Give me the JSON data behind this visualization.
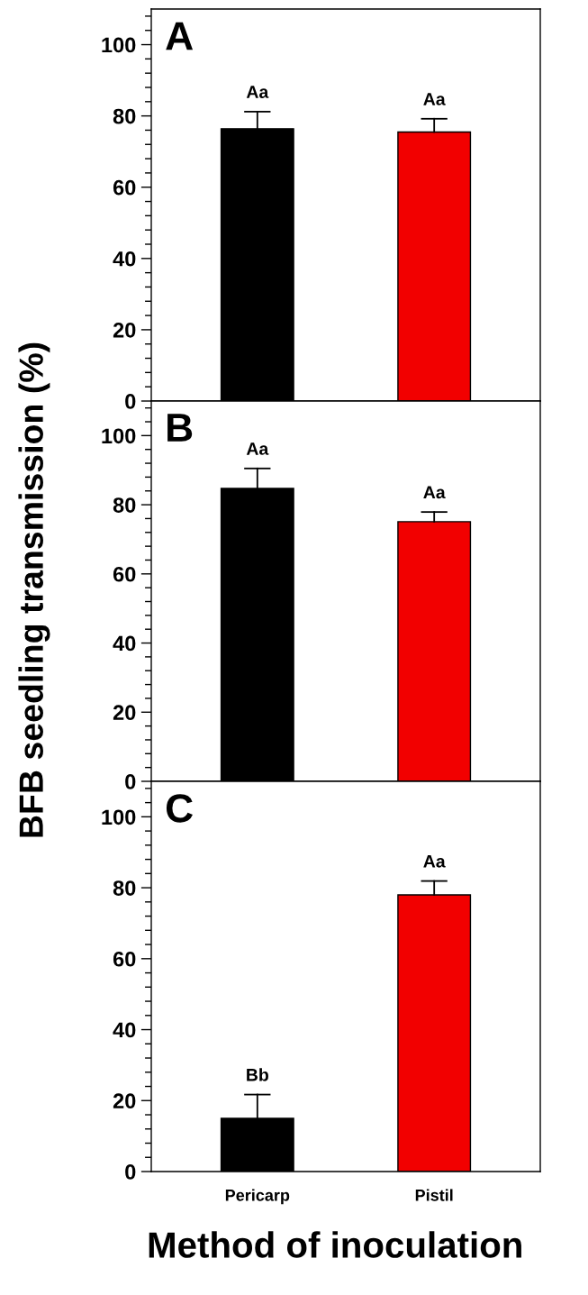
{
  "chart_data": [
    {
      "type": "bar",
      "title": "A",
      "categories": [
        "Pericarp",
        "Pistil"
      ],
      "values": [
        76.4,
        75.5
      ],
      "colors": [
        "#000000",
        "#f20000"
      ],
      "errors": [
        [
          76.4,
          81.2
        ],
        [
          75.5,
          79.2
        ]
      ],
      "ylim": [
        0,
        110
      ],
      "yticks": [
        0,
        {
          "value": 4,
          "label": null
        },
        {
          "value": 8,
          "label": null
        },
        {
          "value": 12,
          "label": null
        },
        {
          "value": 16,
          "label": null
        },
        20,
        {
          "value": 24,
          "label": null
        },
        {
          "value": 28,
          "label": null
        },
        {
          "value": 32,
          "label": null
        },
        {
          "value": 36,
          "label": null
        },
        40,
        {
          "value": 44,
          "label": null
        },
        {
          "value": 48,
          "label": null
        },
        {
          "value": 52,
          "label": null
        },
        {
          "value": 56,
          "label": null
        },
        60,
        {
          "value": 64,
          "label": null
        },
        {
          "value": 68,
          "label": null
        },
        {
          "value": 72,
          "label": null
        },
        {
          "value": 76,
          "label": null
        },
        80,
        {
          "value": 84,
          "label": null
        },
        {
          "value": 88,
          "label": null
        },
        {
          "value": 92,
          "label": null
        },
        {
          "value": 96,
          "label": null
        },
        100,
        {
          "value": 104,
          "label": null
        },
        {
          "value": 108,
          "label": null
        }
      ],
      "annotations": [
        {
          "text": "Aa",
          "x": "Pericarp",
          "y": 81.2
        },
        {
          "text": "Aa",
          "x": "Pistil",
          "y": 79.2
        }
      ],
      "tick_labels": "y",
      "grid": false,
      "legend": false
    },
    {
      "type": "bar",
      "title": "B",
      "ylabel": "BFB seedling transmission (%)",
      "categories": [
        "Pericarp",
        "Pistil"
      ],
      "values": [
        84.7,
        75.1
      ],
      "colors": [
        "#000000",
        "#f20000"
      ],
      "errors": [
        [
          84.7,
          90.5
        ],
        [
          75.1,
          77.9
        ]
      ],
      "ylim": [
        0,
        110
      ],
      "yticks": [
        0,
        {
          "value": 4,
          "label": null
        },
        {
          "value": 8,
          "label": null
        },
        {
          "value": 12,
          "label": null
        },
        {
          "value": 16,
          "label": null
        },
        20,
        {
          "value": 24,
          "label": null
        },
        {
          "value": 28,
          "label": null
        },
        {
          "value": 32,
          "label": null
        },
        {
          "value": 36,
          "label": null
        },
        40,
        {
          "value": 44,
          "label": null
        },
        {
          "value": 48,
          "label": null
        },
        {
          "value": 52,
          "label": null
        },
        {
          "value": 56,
          "label": null
        },
        60,
        {
          "value": 64,
          "label": null
        },
        {
          "value": 68,
          "label": null
        },
        {
          "value": 72,
          "label": null
        },
        {
          "value": 76,
          "label": null
        },
        80,
        {
          "value": 84,
          "label": null
        },
        {
          "value": 88,
          "label": null
        },
        {
          "value": 92,
          "label": null
        },
        {
          "value": 96,
          "label": null
        },
        100,
        {
          "value": 104,
          "label": null
        },
        {
          "value": 108,
          "label": null
        }
      ],
      "annotations": [
        {
          "text": "Aa",
          "x": "Pericarp",
          "y": 90.5
        },
        {
          "text": "Aa",
          "x": "Pistil",
          "y": 77.9
        }
      ],
      "tick_labels": "y",
      "grid": false,
      "legend": false
    },
    {
      "type": "bar",
      "title": "C",
      "xlabel": "Method of inoculation",
      "categories": [
        "Pericarp",
        "Pistil"
      ],
      "values": [
        15.0,
        78.0
      ],
      "colors": [
        "#000000",
        "#f20000"
      ],
      "errors": [
        [
          15.0,
          21.7
        ],
        [
          78.0,
          81.9
        ]
      ],
      "ylim": [
        0,
        110
      ],
      "yticks": [
        0,
        {
          "value": 4,
          "label": null
        },
        {
          "value": 8,
          "label": null
        },
        {
          "value": 12,
          "label": null
        },
        {
          "value": 16,
          "label": null
        },
        20,
        {
          "value": 24,
          "label": null
        },
        {
          "value": 28,
          "label": null
        },
        {
          "value": 32,
          "label": null
        },
        {
          "value": 36,
          "label": null
        },
        40,
        {
          "value": 44,
          "label": null
        },
        {
          "value": 48,
          "label": null
        },
        {
          "value": 52,
          "label": null
        },
        {
          "value": 56,
          "label": null
        },
        60,
        {
          "value": 64,
          "label": null
        },
        {
          "value": 68,
          "label": null
        },
        {
          "value": 72,
          "label": null
        },
        {
          "value": 76,
          "label": null
        },
        80,
        {
          "value": 84,
          "label": null
        },
        {
          "value": 88,
          "label": null
        },
        {
          "value": 92,
          "label": null
        },
        {
          "value": 96,
          "label": null
        },
        100,
        {
          "value": 104,
          "label": null
        },
        {
          "value": 108,
          "label": null
        }
      ],
      "annotations": [
        {
          "text": "Bb",
          "x": "Pericarp",
          "y": 21.7
        },
        {
          "text": "Aa",
          "x": "Pistil",
          "y": 81.9
        }
      ],
      "grid": false,
      "legend": false
    }
  ]
}
